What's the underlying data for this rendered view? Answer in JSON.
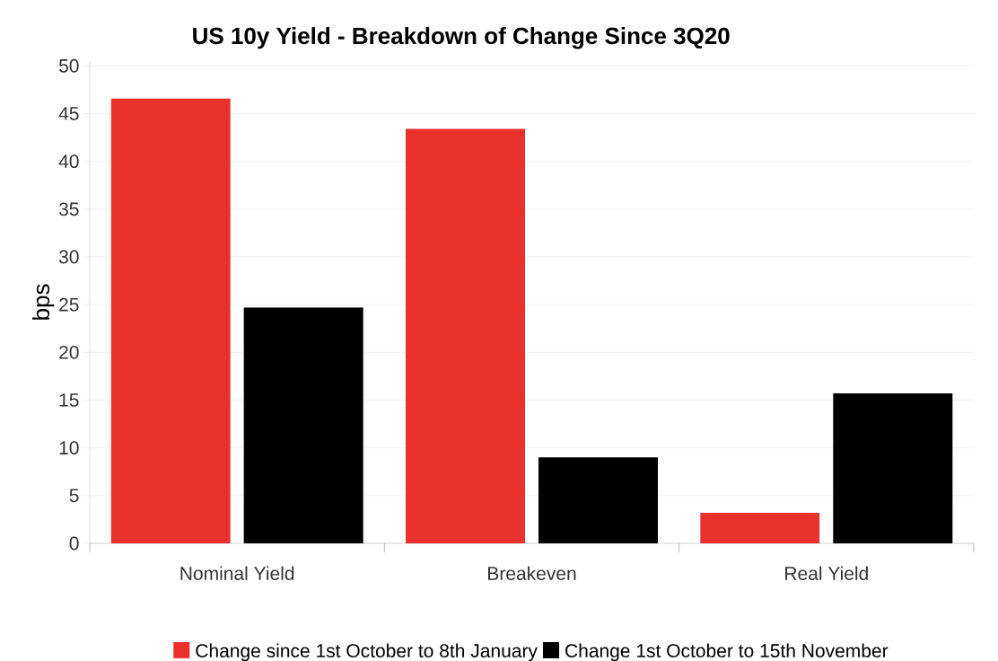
{
  "chart_data": {
    "type": "bar",
    "title": "US 10y Yield - Breakdown of Change Since 3Q20",
    "ylabel": "bps",
    "categories": [
      "Nominal Yield",
      "Breakeven",
      "Real Yield"
    ],
    "series": [
      {
        "name": "Change since 1st October to 8th January",
        "color": "#e8302c",
        "values": [
          46.6,
          43.4,
          3.2
        ]
      },
      {
        "name": "Change 1st October to 15th November",
        "color": "#000000",
        "values": [
          24.7,
          9.0,
          15.7
        ]
      }
    ],
    "ylim": [
      0,
      50.5
    ],
    "yticks": [
      0,
      5,
      10,
      15,
      20,
      25,
      30,
      35,
      40,
      45,
      50
    ],
    "grid": "y",
    "legend": "bottom"
  }
}
